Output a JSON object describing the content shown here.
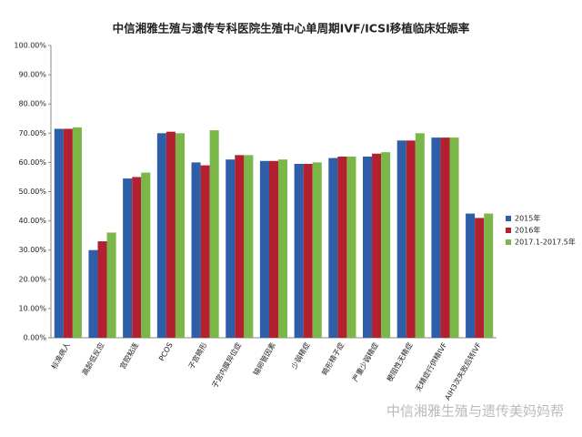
{
  "chart_data": {
    "type": "bar",
    "title": "中信湘雅生殖与遗传专科医院生殖中心单周期IVF/ICSI移植临床妊娠率",
    "categories": [
      "标准病人",
      "高龄低反应",
      "宫腔粘连",
      "PCOS",
      "子宫畸形",
      "子宫内膜异位症",
      "输卵管因素",
      "少弱精症",
      "畸形精子症",
      "严重少弱精症",
      "梗阻性无精症",
      "无精症行供精IVF",
      "AIH3次失败后转IVF"
    ],
    "series": [
      {
        "name": "2015年",
        "color": "#2e5ea8",
        "values": [
          71.5,
          30,
          54.5,
          70,
          60,
          61,
          60.5,
          59.5,
          61.5,
          62,
          67.5,
          68.5,
          42.5
        ]
      },
      {
        "name": "2016年",
        "color": "#b3202f",
        "values": [
          71.5,
          33,
          55,
          70.5,
          59,
          62.5,
          60.5,
          59.5,
          62,
          63,
          67.5,
          68.5,
          41
        ]
      },
      {
        "name": "2017.1-2017.5年",
        "color": "#7ab648",
        "values": [
          72,
          36,
          56.5,
          70,
          71,
          62.5,
          61,
          60,
          62,
          63.5,
          70,
          68.5,
          42.5
        ]
      }
    ],
    "ylim": [
      0,
      100
    ],
    "yticks": [
      {
        "value": 0,
        "label": "0.00%"
      },
      {
        "value": 10,
        "label": "10.00%"
      },
      {
        "value": 20,
        "label": "20.00%"
      },
      {
        "value": 30,
        "label": "30.00%"
      },
      {
        "value": 40,
        "label": "40.00%"
      },
      {
        "value": 50,
        "label": "50.00%"
      },
      {
        "value": 60,
        "label": "60.00%"
      },
      {
        "value": 70,
        "label": "70.00%"
      },
      {
        "value": 80,
        "label": "80.00%"
      },
      {
        "value": 90,
        "label": "90.00%"
      },
      {
        "value": 100,
        "label": "100.00%"
      }
    ],
    "grid": false,
    "legend": "right"
  },
  "watermark": "中信湘雅生殖与遗传美妈妈帮"
}
